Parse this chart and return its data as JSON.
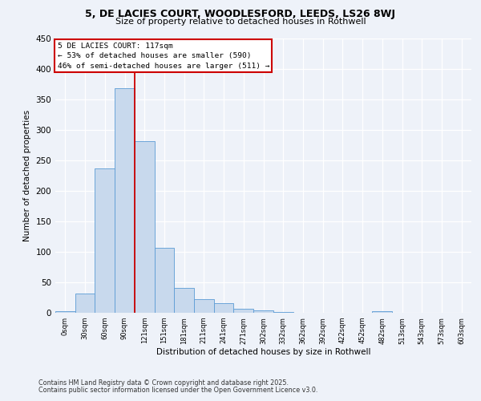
{
  "title1": "5, DE LACIES COURT, WOODLESFORD, LEEDS, LS26 8WJ",
  "title2": "Size of property relative to detached houses in Rothwell",
  "xlabel": "Distribution of detached houses by size in Rothwell",
  "ylabel": "Number of detached properties",
  "bar_values": [
    3,
    32,
    236,
    368,
    281,
    106,
    41,
    22,
    16,
    6,
    4,
    1,
    0,
    0,
    0,
    0,
    3,
    0,
    0,
    0,
    0
  ],
  "bin_labels": [
    "0sqm",
    "30sqm",
    "60sqm",
    "90sqm",
    "121sqm",
    "151sqm",
    "181sqm",
    "211sqm",
    "241sqm",
    "271sqm",
    "302sqm",
    "332sqm",
    "362sqm",
    "392sqm",
    "422sqm",
    "452sqm",
    "482sqm",
    "513sqm",
    "543sqm",
    "573sqm",
    "603sqm"
  ],
  "bar_color": "#c8d9ed",
  "bar_edge_color": "#5b9bd5",
  "property_line_x": 3.5,
  "annotation_text": "5 DE LACIES COURT: 117sqm\n← 53% of detached houses are smaller (590)\n46% of semi-detached houses are larger (511) →",
  "annotation_box_color": "#ffffff",
  "annotation_box_edge": "#cc0000",
  "vline_color": "#cc0000",
  "footer1": "Contains HM Land Registry data © Crown copyright and database right 2025.",
  "footer2": "Contains public sector information licensed under the Open Government Licence v3.0.",
  "background_color": "#eef2f9",
  "ylim": [
    0,
    450
  ],
  "yticks": [
    0,
    50,
    100,
    150,
    200,
    250,
    300,
    350,
    400,
    450
  ]
}
